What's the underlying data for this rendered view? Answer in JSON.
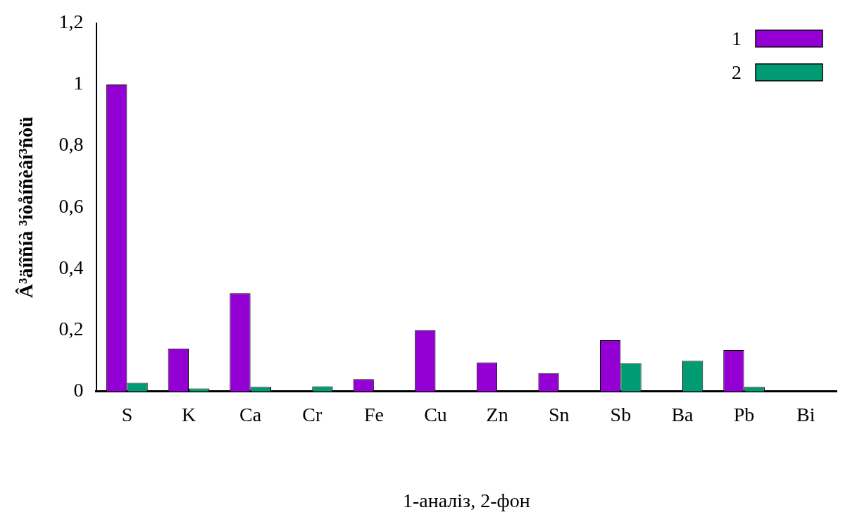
{
  "chart_data": {
    "type": "bar",
    "xlabel": "1-аналіз, 2-фон",
    "ylabel": "Â³äíîñíà ³íòåíñèâí³ñòü",
    "categories": [
      "S",
      "K",
      "Ca",
      "Cr",
      "Fe",
      "Cu",
      "Zn",
      "Sn",
      "Sb",
      "Ba",
      "Pb",
      "Bi"
    ],
    "series": [
      {
        "name": "1",
        "color": "#9400d3",
        "values": [
          1.0,
          0.14,
          0.32,
          0,
          0.04,
          0.2,
          0.095,
          0.06,
          0.167,
          0,
          0.135,
          0
        ]
      },
      {
        "name": "2",
        "color": "#009b72",
        "values": [
          0.028,
          0.01,
          0.015,
          0.017,
          0,
          0,
          0,
          0,
          0.092,
          0.1,
          0.015,
          0
        ]
      }
    ],
    "ylim": [
      0,
      1.2
    ],
    "yticks": [
      0,
      {
        "value": 0.2,
        "label": "0,2"
      },
      {
        "value": 0.4,
        "label": "0,4"
      },
      {
        "value": 0.6,
        "label": "0,6"
      },
      {
        "value": 0.8,
        "label": "0,8"
      },
      1,
      {
        "value": 1.2,
        "label": "1,2"
      }
    ],
    "grid": false,
    "legend": "top right"
  }
}
